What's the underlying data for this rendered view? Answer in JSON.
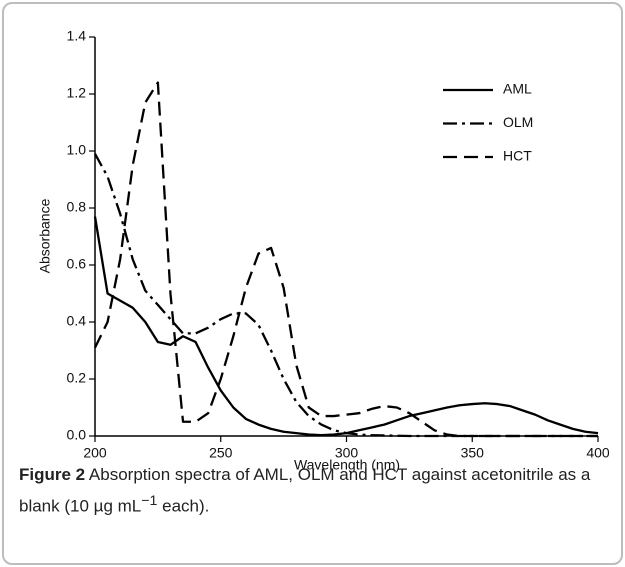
{
  "chart_data": {
    "type": "line",
    "xlabel": "Wavelength (nm)",
    "ylabel": "Absorbance",
    "x": [
      200,
      205,
      210,
      215,
      220,
      225,
      230,
      235,
      240,
      245,
      250,
      255,
      260,
      265,
      270,
      275,
      280,
      285,
      290,
      295,
      300,
      305,
      310,
      315,
      320,
      325,
      330,
      335,
      340,
      345,
      350,
      355,
      360,
      365,
      370,
      375,
      380,
      385,
      390,
      395,
      400
    ],
    "series": [
      {
        "name": "AML",
        "color": "#000000",
        "dash": "solid",
        "values": [
          0.77,
          0.5,
          0.475,
          0.45,
          0.4,
          0.33,
          0.32,
          0.35,
          0.33,
          0.24,
          0.16,
          0.1,
          0.06,
          0.04,
          0.025,
          0.015,
          0.01,
          0.005,
          0.003,
          0.005,
          0.01,
          0.02,
          0.03,
          0.04,
          0.055,
          0.07,
          0.08,
          0.09,
          0.1,
          0.108,
          0.112,
          0.115,
          0.112,
          0.105,
          0.09,
          0.075,
          0.055,
          0.04,
          0.025,
          0.015,
          0.01
        ]
      },
      {
        "name": "OLM",
        "color": "#000000",
        "dash": "dashdot",
        "values": [
          0.99,
          0.91,
          0.78,
          0.62,
          0.51,
          0.46,
          0.41,
          0.36,
          0.36,
          0.38,
          0.41,
          0.43,
          0.43,
          0.39,
          0.3,
          0.2,
          0.12,
          0.07,
          0.04,
          0.02,
          0.01,
          0.005,
          0.003,
          0.002,
          0.001,
          0,
          0,
          0,
          0,
          0,
          0,
          0,
          0,
          0,
          0,
          0,
          0,
          0,
          0,
          0,
          0
        ]
      },
      {
        "name": "HCT",
        "color": "#000000",
        "dash": "dashed",
        "values": [
          0.31,
          0.4,
          0.62,
          0.95,
          1.17,
          1.24,
          0.5,
          0.05,
          0.05,
          0.08,
          0.2,
          0.35,
          0.52,
          0.64,
          0.66,
          0.52,
          0.25,
          0.1,
          0.07,
          0.07,
          0.075,
          0.08,
          0.095,
          0.105,
          0.1,
          0.08,
          0.05,
          0.02,
          0.005,
          0,
          0,
          0,
          0,
          0,
          0,
          0,
          0,
          0,
          0,
          0,
          0
        ]
      }
    ],
    "xlim": [
      200,
      400
    ],
    "xticks": [
      200,
      250,
      300,
      350,
      400
    ],
    "ylim": [
      0,
      1.4
    ],
    "yticks": [
      {
        "value": 0,
        "label": "0.0"
      },
      0.2,
      0.4,
      0.6,
      0.8,
      {
        "value": 1,
        "label": "1.0"
      },
      1.2,
      1.4
    ],
    "legend": "upper right"
  },
  "caption": {
    "label": "Figure 2",
    "text": " Absorption spectra of AML, OLM and HCT against acetonitrile as a blank (10 µg mL",
    "superscript": "−1",
    "tail": " each)."
  }
}
